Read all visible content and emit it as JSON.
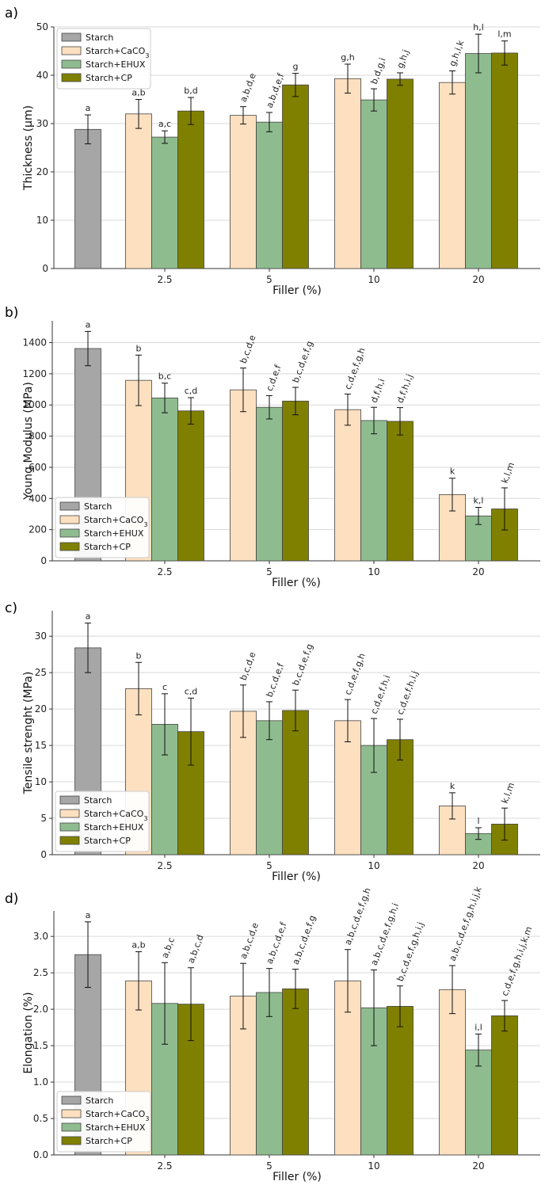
{
  "chart_data": [
    {
      "panel_label": "a)",
      "type": "bar",
      "xlabel": "Filler (%)",
      "ylabel": "Thickness (μm)",
      "ylim": [
        0,
        50
      ],
      "yticks": [
        0,
        10,
        20,
        30,
        40,
        50
      ],
      "categories": [
        "2.5",
        "5",
        "10",
        "20"
      ],
      "grid": true,
      "legend": "top-left",
      "control": {
        "name": "Starch",
        "value": 28.8,
        "err": 3.0,
        "sig": "a"
      },
      "series": [
        {
          "name": "Starch+CaCO3",
          "values": [
            32.0,
            31.7,
            39.3,
            38.5
          ],
          "errors": [
            3.0,
            1.8,
            3.0,
            2.4
          ],
          "sig": [
            "a,b",
            "a,b,d,e",
            "g,h",
            "g,h,i,k"
          ]
        },
        {
          "name": "Starch+EHUX",
          "values": [
            27.2,
            30.3,
            34.9,
            44.5
          ],
          "errors": [
            1.3,
            2.0,
            2.3,
            4.0
          ],
          "sig": [
            "a,c",
            "a,b,d,e,f",
            "b,d,g,i",
            "h,l"
          ]
        },
        {
          "name": "Starch+CP",
          "values": [
            32.6,
            38.0,
            39.2,
            44.6
          ],
          "errors": [
            2.8,
            2.4,
            1.3,
            2.5
          ],
          "sig": [
            "b,d",
            "g",
            "g,h,j",
            "l,m"
          ]
        }
      ]
    },
    {
      "panel_label": "b)",
      "type": "bar",
      "xlabel": "Filler (%)",
      "ylabel": "Young Modulus (MPa)",
      "ylim": [
        0,
        1540
      ],
      "yticks": [
        0,
        200,
        400,
        600,
        800,
        1000,
        1200,
        1400
      ],
      "categories": [
        "2.5",
        "5",
        "10",
        "20"
      ],
      "grid": true,
      "legend": "bottom-left",
      "control": {
        "name": "Starch",
        "value": 1362,
        "err": 110,
        "sig": "a"
      },
      "series": [
        {
          "name": "Starch+CaCO3",
          "values": [
            1158,
            1097,
            970,
            425
          ],
          "errors": [
            162,
            140,
            100,
            105
          ],
          "sig": [
            "b",
            "b,c,d,e",
            "c,d,e,f,g,h",
            "k"
          ]
        },
        {
          "name": "Starch+EHUX",
          "values": [
            1045,
            985,
            900,
            288
          ],
          "errors": [
            95,
            75,
            85,
            55
          ],
          "sig": [
            "b,c",
            "c,d,e,f",
            "d,f,h,i",
            "k,l"
          ]
        },
        {
          "name": "Starch+CP",
          "values": [
            962,
            1025,
            895,
            333
          ],
          "errors": [
            85,
            88,
            88,
            135
          ],
          "sig": [
            "c,d",
            "b,c,d,e,f,g",
            "d,f,h,i,j",
            "k,l,m"
          ]
        }
      ]
    },
    {
      "panel_label": "c)",
      "type": "bar",
      "xlabel": "Filler (%)",
      "ylabel": "Tensile strenght (MPa)",
      "ylim": [
        0,
        33.5
      ],
      "yticks": [
        0,
        5,
        10,
        15,
        20,
        25,
        30
      ],
      "categories": [
        "2.5",
        "5",
        "10",
        "20"
      ],
      "grid": true,
      "legend": "bottom-left",
      "control": {
        "name": "Starch",
        "value": 28.4,
        "err": 3.4,
        "sig": "a"
      },
      "series": [
        {
          "name": "Starch+CaCO3",
          "values": [
            22.8,
            19.7,
            18.4,
            6.7
          ],
          "errors": [
            3.6,
            3.6,
            2.9,
            1.8
          ],
          "sig": [
            "b",
            "b,c,d,e",
            "c,d,e,f,g,h",
            "k"
          ]
        },
        {
          "name": "Starch+EHUX",
          "values": [
            17.9,
            18.4,
            15.0,
            2.9
          ],
          "errors": [
            4.2,
            2.6,
            3.7,
            0.8
          ],
          "sig": [
            "c",
            "b,c,d,e,f",
            "c,d,e,f,h,i",
            "l"
          ]
        },
        {
          "name": "Starch+CP",
          "values": [
            16.9,
            19.8,
            15.8,
            4.2
          ],
          "errors": [
            4.6,
            2.8,
            2.8,
            2.2
          ],
          "sig": [
            "c,d",
            "b,c,d,e,f,g",
            "c,d,e,f,h,i,j",
            "k,l,m"
          ]
        }
      ]
    },
    {
      "panel_label": "d)",
      "type": "bar",
      "xlabel": "Filler (%)",
      "ylabel": "Elongation (%)",
      "ylim": [
        0,
        3.35
      ],
      "yticks": [
        0.0,
        0.5,
        1.0,
        1.5,
        2.0,
        2.5,
        3.0
      ],
      "categories": [
        "2.5",
        "5",
        "10",
        "20"
      ],
      "grid": true,
      "legend": "bottom-left",
      "control": {
        "name": "Starch",
        "value": 2.75,
        "err": 0.45,
        "sig": "a"
      },
      "series": [
        {
          "name": "Starch+CaCO3",
          "values": [
            2.39,
            2.18,
            2.39,
            2.27
          ],
          "errors": [
            0.4,
            0.45,
            0.43,
            0.33
          ],
          "sig": [
            "a,b",
            "a,b,c,d,e",
            "a,b,c,d,e,f,g,h",
            "a,b,c,d,e,f,g,h,i,j,k"
          ]
        },
        {
          "name": "Starch+EHUX",
          "values": [
            2.08,
            2.23,
            2.02,
            1.44
          ],
          "errors": [
            0.56,
            0.33,
            0.52,
            0.22
          ],
          "sig": [
            "a,b,c",
            "a,b,c,d,e,f",
            "a,b,c,d,e,f,g,h,i",
            "i,l"
          ]
        },
        {
          "name": "Starch+CP",
          "values": [
            2.07,
            2.28,
            2.04,
            1.91
          ],
          "errors": [
            0.5,
            0.27,
            0.28,
            0.21
          ],
          "sig": [
            "a,b,c,d",
            "a,b,c,d,e,f,g",
            "b,c,d,e,f,g,h,i,j",
            "c,d,e,f,g,h,i,j,k,m"
          ]
        }
      ]
    }
  ],
  "colors": {
    "Starch": "#a6a6a6",
    "Starch+CaCO3": "#fde0c0",
    "Starch+EHUX": "#8fbc8f",
    "Starch+CP": "#808000",
    "grid": "#d9d9d9",
    "axis": "#333333"
  }
}
